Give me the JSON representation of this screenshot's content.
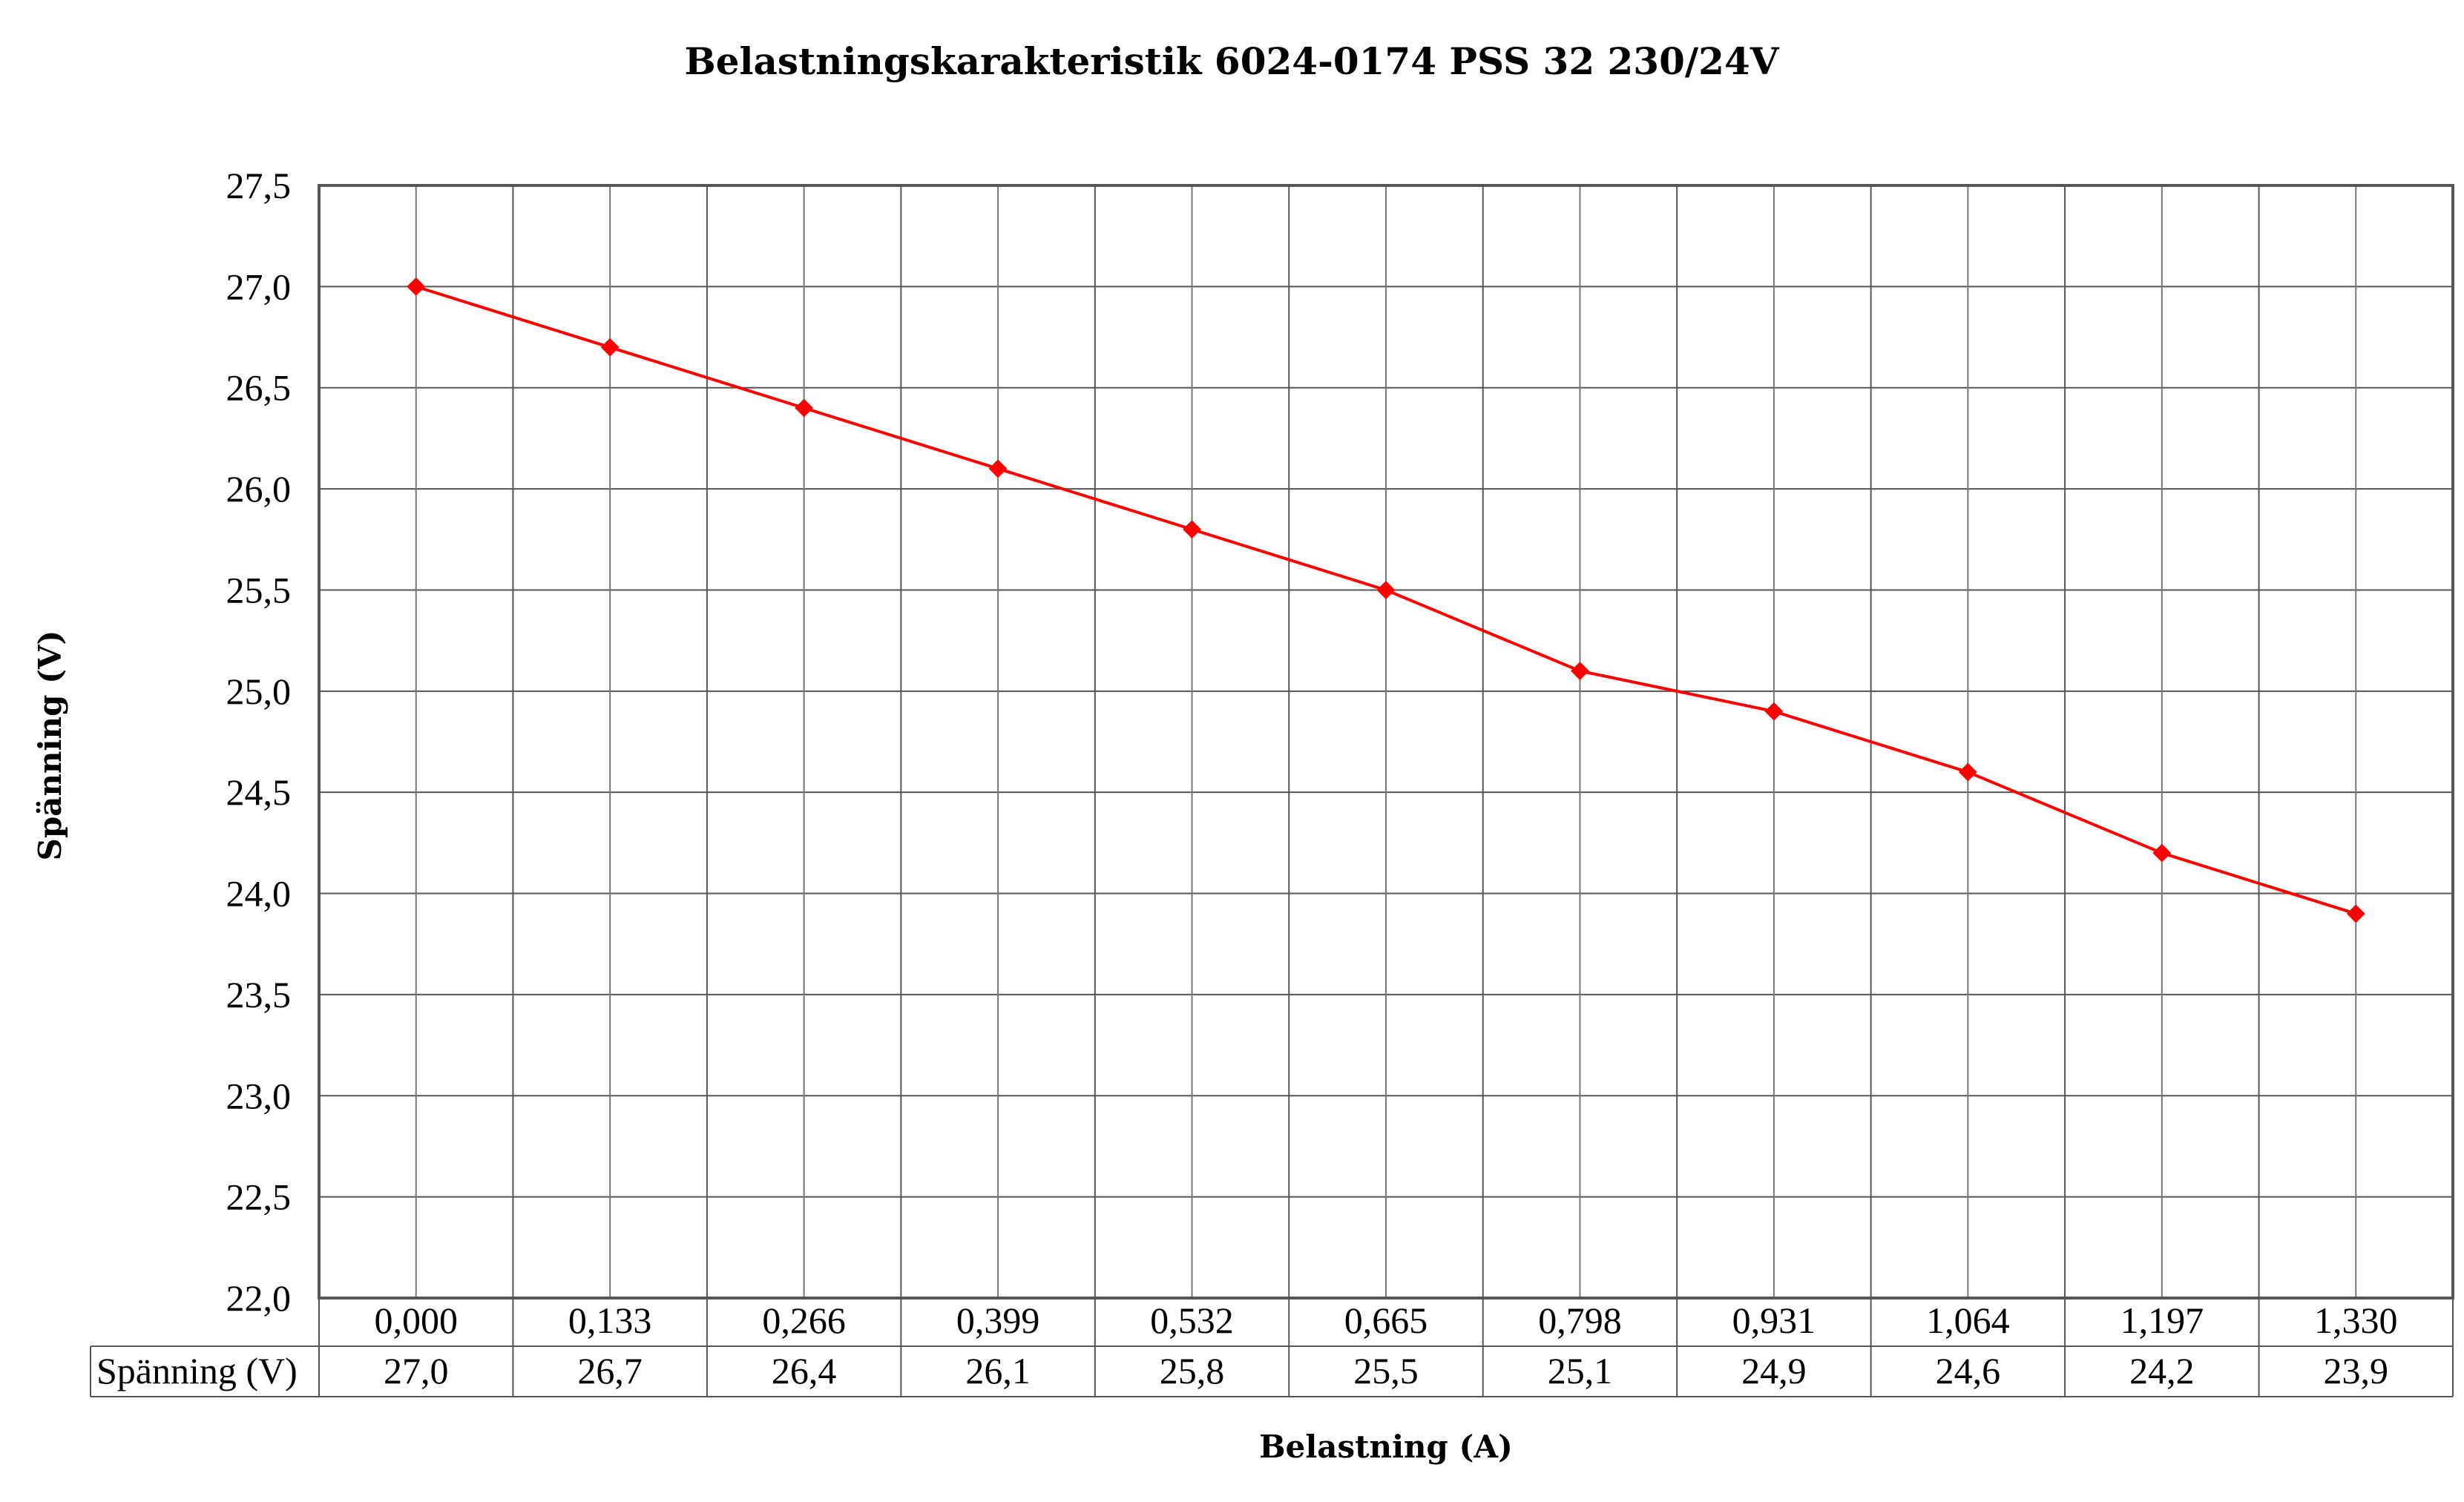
{
  "chart_data": {
    "type": "line",
    "title": "Belastningskarakteristik 6024-0174 PSS 32 230/24V",
    "xlabel": "Belastning (A)",
    "ylabel": "Spänning (V)",
    "ylim": [
      22.0,
      27.5
    ],
    "y_ticks": [
      "22,0",
      "22,5",
      "23,0",
      "23,5",
      "24,0",
      "24,5",
      "25,0",
      "25,5",
      "26,0",
      "26,5",
      "27,0",
      "27,5"
    ],
    "y_tick_values": [
      22.0,
      22.5,
      23.0,
      23.5,
      24.0,
      24.5,
      25.0,
      25.5,
      26.0,
      26.5,
      27.0,
      27.5
    ],
    "categories": [
      "0,000",
      "0,133",
      "0,266",
      "0,399",
      "0,532",
      "0,665",
      "0,798",
      "0,931",
      "1,064",
      "1,197",
      "1,330"
    ],
    "series": [
      {
        "name": "Spänning (V)",
        "values": [
          27.0,
          26.7,
          26.4,
          26.1,
          25.8,
          25.5,
          25.1,
          24.9,
          24.6,
          24.2,
          23.9
        ],
        "value_labels": [
          "27,0",
          "26,7",
          "26,4",
          "26,1",
          "25,8",
          "25,5",
          "25,1",
          "24,9",
          "24,6",
          "24,2",
          "23,9"
        ],
        "color": "#ff0000",
        "marker": "diamond"
      }
    ],
    "grid": true,
    "data_table": true,
    "legend": "none"
  }
}
